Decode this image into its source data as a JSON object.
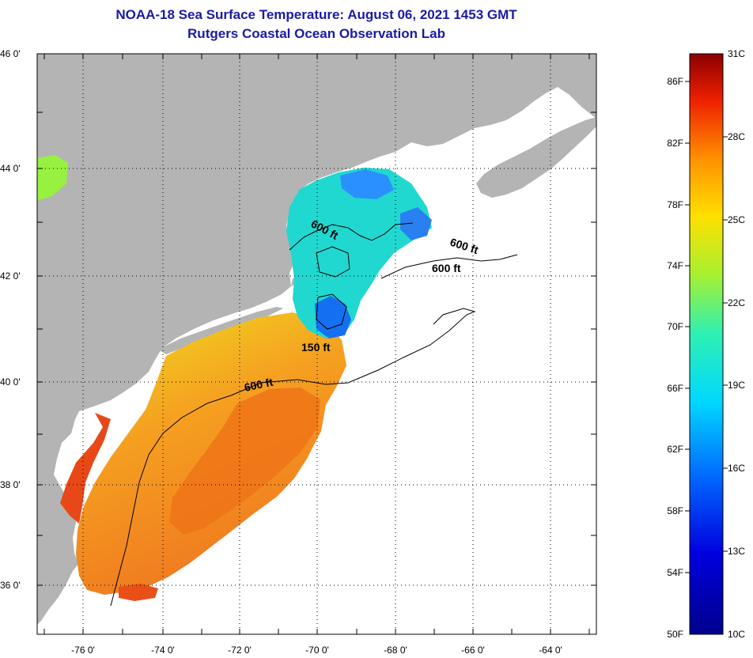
{
  "header": {
    "title": "NOAA-18 Sea Surface Temperature:  August 06, 2021 1453 GMT",
    "subtitle": "Rutgers Coastal Ocean Observation Lab"
  },
  "axes": {
    "lon_labels": [
      "-76 0'",
      "-74 0'",
      "-72 0'",
      "-70 0'",
      "-68 0'",
      "-66 0'",
      "-64 0'"
    ],
    "lat_labels": [
      "46 0'",
      "44 0'",
      "42 0'",
      "40 0'",
      "38 0'",
      "36 0'"
    ]
  },
  "contours": {
    "labels": [
      "600 ft",
      "600 ft",
      "600 ft",
      "150 ft",
      "600 ft"
    ]
  },
  "colorbar": {
    "fahrenheit": [
      "86F",
      "82F",
      "78F",
      "74F",
      "70F",
      "66F",
      "62F",
      "58F",
      "54F",
      "50F"
    ],
    "celsius": [
      "31C",
      "28C",
      "25C",
      "22C",
      "19C",
      "16C",
      "13C",
      "10C"
    ],
    "range_celsius": [
      10,
      31
    ]
  },
  "colors": {
    "land": "#b4b4b4",
    "ocean_no_data": "#ffffff",
    "title": "#1a1aa6"
  }
}
